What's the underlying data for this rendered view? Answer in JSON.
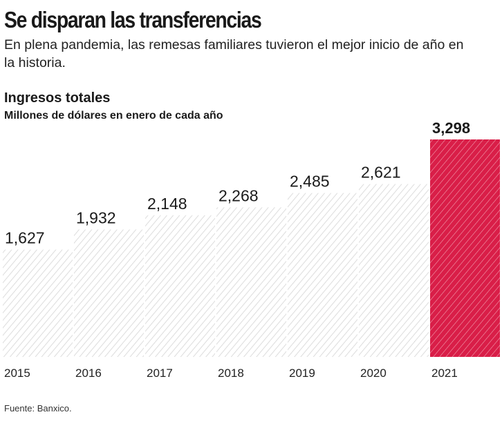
{
  "title": "Se disparan las transferencias",
  "subtitle": "En plena pandemia, las remesas familiares tuvieron el mejor inicio de año en la historia.",
  "chart_data": {
    "type": "bar",
    "title": "Ingresos totales",
    "ylabel": "Millones de dólares en enero de cada año",
    "categories": [
      "2015",
      "2016",
      "2017",
      "2018",
      "2019",
      "2020",
      "2021"
    ],
    "values": [
      1627,
      1932,
      2148,
      2268,
      2485,
      2621,
      3298
    ],
    "labels": [
      "1,627",
      "1,932",
      "2,148",
      "2,268",
      "2,485",
      "2,621",
      "3,298"
    ],
    "highlight": "2021",
    "colors": {
      "bar": "#e5e5e5",
      "highlight": "#d91e48"
    },
    "ylim": [
      0,
      3298
    ],
    "grid": false
  },
  "source": "Fuente: Banxico."
}
